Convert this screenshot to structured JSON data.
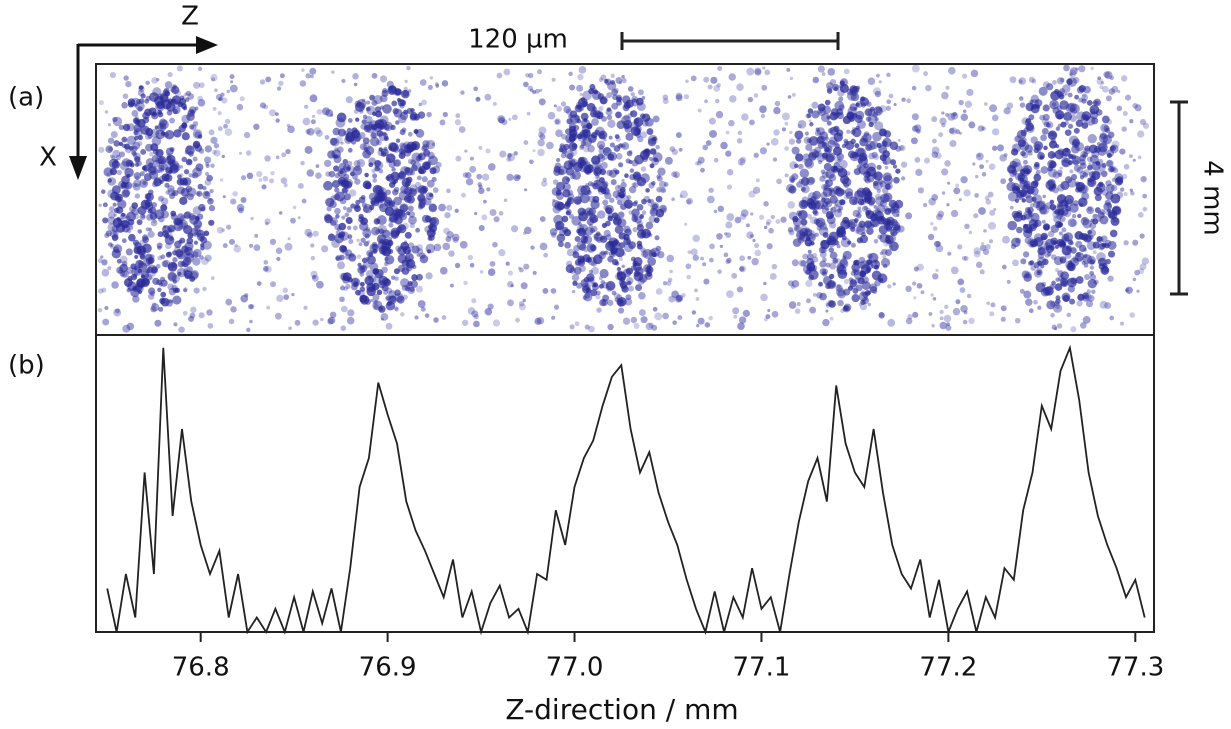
{
  "chart_data": {
    "type": "line",
    "annotations": [
      "(a)",
      "(b)",
      "Z",
      "X",
      "120 µm",
      "4 mm"
    ],
    "xlabel": "Z-direction / mm",
    "xlim": [
      76.744,
      77.31
    ],
    "xticks": [
      76.8,
      76.9,
      {
        "value": 77,
        "label": "77.0"
      },
      77.1,
      77.2,
      77.3
    ],
    "ylim": [
      0,
      100
    ],
    "x": [
      76.75,
      76.755,
      76.76,
      76.765,
      76.77,
      76.775,
      76.78,
      76.785,
      76.79,
      76.795,
      76.8,
      76.805,
      76.81,
      76.815,
      76.82,
      76.825,
      76.83,
      76.835,
      76.84,
      76.845,
      76.85,
      76.855,
      76.86,
      76.865,
      76.87,
      76.875,
      76.88,
      76.885,
      76.89,
      76.895,
      76.9,
      76.905,
      76.91,
      76.915,
      76.92,
      76.925,
      76.93,
      76.935,
      76.94,
      76.945,
      76.95,
      76.955,
      76.96,
      76.965,
      76.97,
      76.975,
      76.98,
      76.985,
      76.99,
      76.995,
      77,
      77.005,
      77.01,
      77.015,
      77.02,
      77.025,
      77.03,
      77.035,
      77.04,
      77.045,
      77.05,
      77.055,
      77.06,
      77.065,
      77.07,
      77.075,
      77.08,
      77.085,
      77.09,
      77.095,
      77.1,
      77.105,
      77.11,
      77.115,
      77.12,
      77.125,
      77.13,
      77.135,
      77.14,
      77.145,
      77.15,
      77.155,
      77.16,
      77.165,
      77.17,
      77.175,
      77.18,
      77.185,
      77.19,
      77.195,
      77.2,
      77.205,
      77.21,
      77.215,
      77.22,
      77.225,
      77.23,
      77.235,
      77.24,
      77.245,
      77.25,
      77.255,
      77.26,
      77.265,
      77.27,
      77.275,
      77.28,
      77.285,
      77.29,
      77.295,
      77.3,
      77.305
    ],
    "values": [
      15,
      0,
      20,
      5,
      55,
      20,
      98,
      40,
      70,
      45,
      30,
      20,
      28,
      5,
      20,
      0,
      5,
      0,
      8,
      0,
      12,
      0,
      14,
      3,
      15,
      0,
      22,
      50,
      60,
      86,
      75,
      65,
      45,
      35,
      28,
      20,
      12,
      25,
      5,
      14,
      0,
      10,
      16,
      5,
      8,
      0,
      20,
      18,
      42,
      30,
      50,
      60,
      66,
      78,
      88,
      92,
      70,
      55,
      62,
      48,
      38,
      30,
      18,
      8,
      0,
      14,
      0,
      12,
      5,
      22,
      8,
      12,
      0,
      20,
      38,
      52,
      60,
      45,
      85,
      65,
      55,
      50,
      70,
      48,
      30,
      20,
      15,
      25,
      5,
      18,
      0,
      8,
      14,
      0,
      12,
      5,
      22,
      18,
      42,
      55,
      78,
      70,
      90,
      98,
      80,
      55,
      40,
      30,
      22,
      12,
      18,
      5
    ],
    "color": "#222222"
  }
}
